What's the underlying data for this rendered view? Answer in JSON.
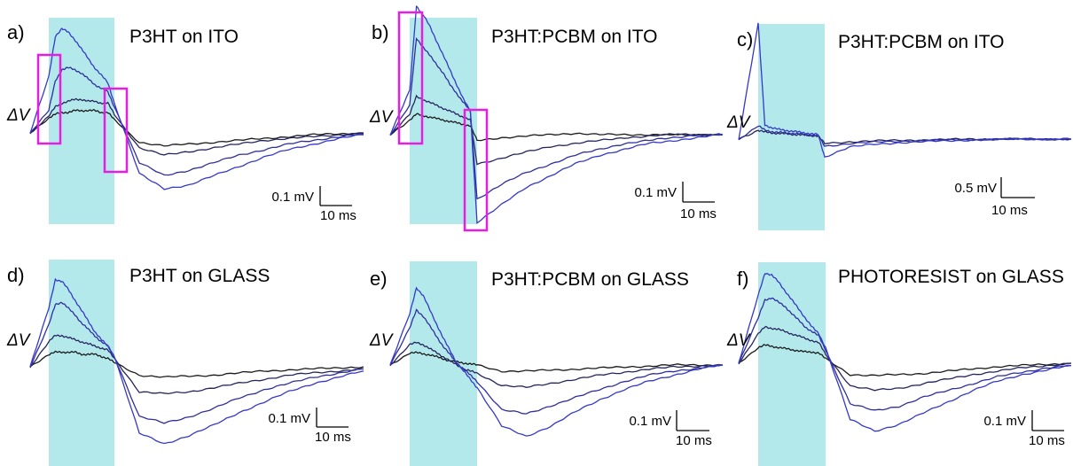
{
  "colors": {
    "pulse_shading": "#b4e9ec",
    "trace_light": "#1b1b1b",
    "trace_mid": "#25255e",
    "trace_strong": "#2e2f9d",
    "trace_max": "#3539c8",
    "highlight_box": "#e61ee0",
    "scale_bar": "#000000"
  },
  "chart_data": [
    {
      "type": "line",
      "id": "a",
      "panel_label": "a)",
      "title": "P3HT on ITO",
      "ylabel": "ΔV",
      "scale_bar": {
        "voltage": "0.1 mV",
        "time": "10 ms"
      },
      "highlight_boxes": 2,
      "series": [
        {
          "values": [
            0,
            0.08,
            0.1,
            0.11,
            0.11,
            0.12,
            0.12,
            0.12,
            0.12,
            0.11,
            0.11,
            0.07,
            -0.05,
            -0.07,
            -0.06,
            -0.05,
            -0.04,
            -0.03,
            -0.02,
            -0.01,
            -0.005,
            0
          ]
        },
        {
          "values": [
            0,
            0.09,
            0.14,
            0.16,
            0.17,
            0.18,
            0.18,
            0.17,
            0.17,
            0.16,
            0.16,
            0.1,
            -0.08,
            -0.12,
            -0.1,
            -0.08,
            -0.06,
            -0.04,
            -0.03,
            -0.02,
            -0.01,
            0
          ]
        },
        {
          "values": [
            0,
            0.12,
            0.28,
            0.34,
            0.35,
            0.34,
            0.32,
            0.29,
            0.26,
            0.24,
            0.22,
            0.14,
            -0.16,
            -0.23,
            -0.2,
            -0.16,
            -0.12,
            -0.09,
            -0.06,
            -0.04,
            -0.02,
            -0.005
          ]
        },
        {
          "values": [
            0,
            0.3,
            0.52,
            0.56,
            0.54,
            0.5,
            0.45,
            0.4,
            0.35,
            0.31,
            0.27,
            0.16,
            -0.22,
            -0.3,
            -0.28,
            -0.23,
            -0.18,
            -0.13,
            -0.09,
            -0.06,
            -0.03,
            -0.01
          ]
        }
      ]
    },
    {
      "type": "line",
      "id": "b",
      "panel_label": "b)",
      "title": "P3HT:PCBM on ITO",
      "ylabel": "ΔV",
      "scale_bar": {
        "voltage": "0.1 mV",
        "time": "10 ms"
      },
      "highlight_boxes": 2,
      "series": [
        {
          "values": [
            0,
            0.05,
            0.07,
            0.065,
            0.06,
            0.055,
            0.05,
            0.045,
            0.04,
            0.035,
            0.03,
            -0.02,
            -0.01,
            -0.005,
            0,
            0.005,
            0,
            0,
            0,
            0,
            0,
            0
          ]
        },
        {
          "values": [
            0,
            0.07,
            0.13,
            0.12,
            0.11,
            0.1,
            0.09,
            0.08,
            0.07,
            0.06,
            0.05,
            -0.1,
            -0.08,
            -0.06,
            -0.04,
            -0.03,
            -0.02,
            -0.01,
            -0.005,
            0,
            0,
            0
          ]
        },
        {
          "values": [
            0,
            0.1,
            0.33,
            0.3,
            0.27,
            0.24,
            0.21,
            0.17,
            0.14,
            0.11,
            0.08,
            -0.22,
            -0.17,
            -0.13,
            -0.1,
            -0.07,
            -0.05,
            -0.03,
            -0.02,
            -0.01,
            0,
            0
          ]
        },
        {
          "values": [
            0,
            0.15,
            0.44,
            0.41,
            0.37,
            0.32,
            0.27,
            0.22,
            0.17,
            0.12,
            0.08,
            -0.3,
            -0.24,
            -0.18,
            -0.14,
            -0.1,
            -0.07,
            -0.05,
            -0.03,
            -0.02,
            -0.01,
            0
          ]
        }
      ]
    },
    {
      "type": "line",
      "id": "c",
      "panel_label": "c)",
      "title": "P3HT:PCBM on ITO",
      "ylabel": "ΔV",
      "scale_bar": {
        "voltage": "0.5 mV",
        "time": "10 ms"
      },
      "highlight_boxes": 0,
      "series": [
        {
          "values": [
            0,
            0.1,
            0.08,
            0.07,
            0.065,
            0.06,
            0.055,
            0.05,
            0.045,
            0.04,
            0.035,
            -0.05,
            -0.03,
            -0.02,
            -0.015,
            -0.01,
            -0.005,
            0,
            0,
            0,
            0,
            0
          ]
        },
        {
          "values": [
            0,
            0.15,
            0.1,
            0.085,
            0.075,
            0.07,
            0.065,
            0.06,
            0.05,
            0.045,
            0.04,
            -0.08,
            -0.05,
            -0.035,
            -0.025,
            -0.015,
            -0.01,
            -0.005,
            0,
            0,
            0,
            0
          ]
        },
        {
          "values": [
            0,
            1.3,
            0.16,
            0.13,
            0.11,
            0.1,
            0.09,
            0.08,
            0.07,
            0.06,
            0.05,
            -0.2,
            -0.09,
            -0.06,
            -0.04,
            -0.03,
            -0.02,
            -0.01,
            -0.005,
            0,
            0,
            0
          ]
        }
      ]
    },
    {
      "type": "line",
      "id": "d",
      "panel_label": "d)",
      "title": "P3HT on GLASS",
      "ylabel": "ΔV",
      "scale_bar": {
        "voltage": "0.1 mV",
        "time": "10 ms"
      },
      "highlight_boxes": 0,
      "series": [
        {
          "values": [
            0,
            0.06,
            0.07,
            0.07,
            0.07,
            0.07,
            0.06,
            0.06,
            0.06,
            0.05,
            0.04,
            0.02,
            -0.04,
            -0.05,
            -0.045,
            -0.04,
            -0.03,
            -0.02,
            -0.015,
            -0.01,
            -0.005,
            0
          ]
        },
        {
          "values": [
            0,
            0.12,
            0.15,
            0.15,
            0.14,
            0.13,
            0.12,
            0.11,
            0.1,
            0.09,
            0.08,
            0.04,
            -0.12,
            -0.13,
            -0.12,
            -0.1,
            -0.08,
            -0.06,
            -0.04,
            -0.03,
            -0.02,
            -0.01
          ]
        },
        {
          "values": [
            0,
            0.2,
            0.3,
            0.31,
            0.28,
            0.25,
            0.21,
            0.18,
            0.15,
            0.12,
            0.1,
            0.05,
            -0.24,
            -0.27,
            -0.24,
            -0.2,
            -0.15,
            -0.11,
            -0.08,
            -0.05,
            -0.03,
            -0.01
          ]
        },
        {
          "values": [
            0,
            0.28,
            0.42,
            0.41,
            0.37,
            0.32,
            0.27,
            0.22,
            0.17,
            0.13,
            0.1,
            0.05,
            -0.32,
            -0.37,
            -0.33,
            -0.28,
            -0.22,
            -0.17,
            -0.12,
            -0.08,
            -0.05,
            -0.02
          ]
        }
      ]
    },
    {
      "type": "line",
      "id": "e",
      "panel_label": "e)",
      "title": "P3HT:PCBM on GLASS",
      "ylabel": "ΔV",
      "scale_bar": {
        "voltage": "0.1 mV",
        "time": "10 ms"
      },
      "highlight_boxes": 0,
      "series": [
        {
          "values": [
            0,
            0.06,
            0.06,
            0.055,
            0.05,
            0.04,
            0.03,
            0.02,
            0.015,
            0.01,
            0.005,
            0,
            -0.03,
            -0.03,
            -0.025,
            -0.02,
            -0.015,
            -0.01,
            -0.005,
            0,
            0,
            0
          ]
        },
        {
          "values": [
            0,
            0.1,
            0.11,
            0.1,
            0.08,
            0.06,
            0.04,
            0.02,
            0.0,
            -0.02,
            -0.03,
            -0.04,
            -0.1,
            -0.11,
            -0.09,
            -0.07,
            -0.05,
            -0.035,
            -0.02,
            -0.01,
            -0.005,
            0
          ]
        },
        {
          "values": [
            0,
            0.18,
            0.27,
            0.24,
            0.19,
            0.14,
            0.09,
            0.05,
            0.01,
            -0.02,
            -0.05,
            -0.08,
            -0.22,
            -0.24,
            -0.2,
            -0.16,
            -0.12,
            -0.08,
            -0.05,
            -0.03,
            -0.015,
            0
          ]
        },
        {
          "values": [
            0,
            0.25,
            0.38,
            0.34,
            0.27,
            0.2,
            0.13,
            0.07,
            0.01,
            -0.03,
            -0.07,
            -0.11,
            -0.3,
            -0.35,
            -0.3,
            -0.23,
            -0.17,
            -0.12,
            -0.08,
            -0.05,
            -0.02,
            0
          ]
        }
      ]
    },
    {
      "type": "line",
      "id": "f",
      "panel_label": "f)",
      "title": "PHOTORESIST on GLASS",
      "ylabel": "ΔV",
      "scale_bar": {
        "voltage": "0.1 mV",
        "time": "10 ms"
      },
      "highlight_boxes": 0,
      "series": [
        {
          "values": [
            0,
            0.07,
            0.08,
            0.075,
            0.07,
            0.065,
            0.06,
            0.055,
            0.05,
            0.05,
            0.045,
            0.02,
            -0.05,
            -0.055,
            -0.05,
            -0.045,
            -0.035,
            -0.025,
            -0.015,
            -0.01,
            -0.005,
            0
          ]
        },
        {
          "values": [
            0,
            0.13,
            0.16,
            0.155,
            0.15,
            0.14,
            0.13,
            0.12,
            0.11,
            0.1,
            0.09,
            0.04,
            -0.1,
            -0.12,
            -0.11,
            -0.09,
            -0.07,
            -0.05,
            -0.035,
            -0.02,
            -0.01,
            0
          ]
        },
        {
          "values": [
            0,
            0.2,
            0.28,
            0.29,
            0.27,
            0.25,
            0.22,
            0.19,
            0.16,
            0.14,
            0.12,
            0.06,
            -0.18,
            -0.21,
            -0.19,
            -0.15,
            -0.12,
            -0.09,
            -0.06,
            -0.04,
            -0.02,
            -0.01
          ]
        },
        {
          "values": [
            0,
            0.3,
            0.4,
            0.39,
            0.36,
            0.32,
            0.28,
            0.24,
            0.2,
            0.16,
            0.13,
            0.07,
            -0.25,
            -0.3,
            -0.27,
            -0.22,
            -0.17,
            -0.12,
            -0.08,
            -0.05,
            -0.03,
            -0.01
          ]
        }
      ]
    }
  ]
}
